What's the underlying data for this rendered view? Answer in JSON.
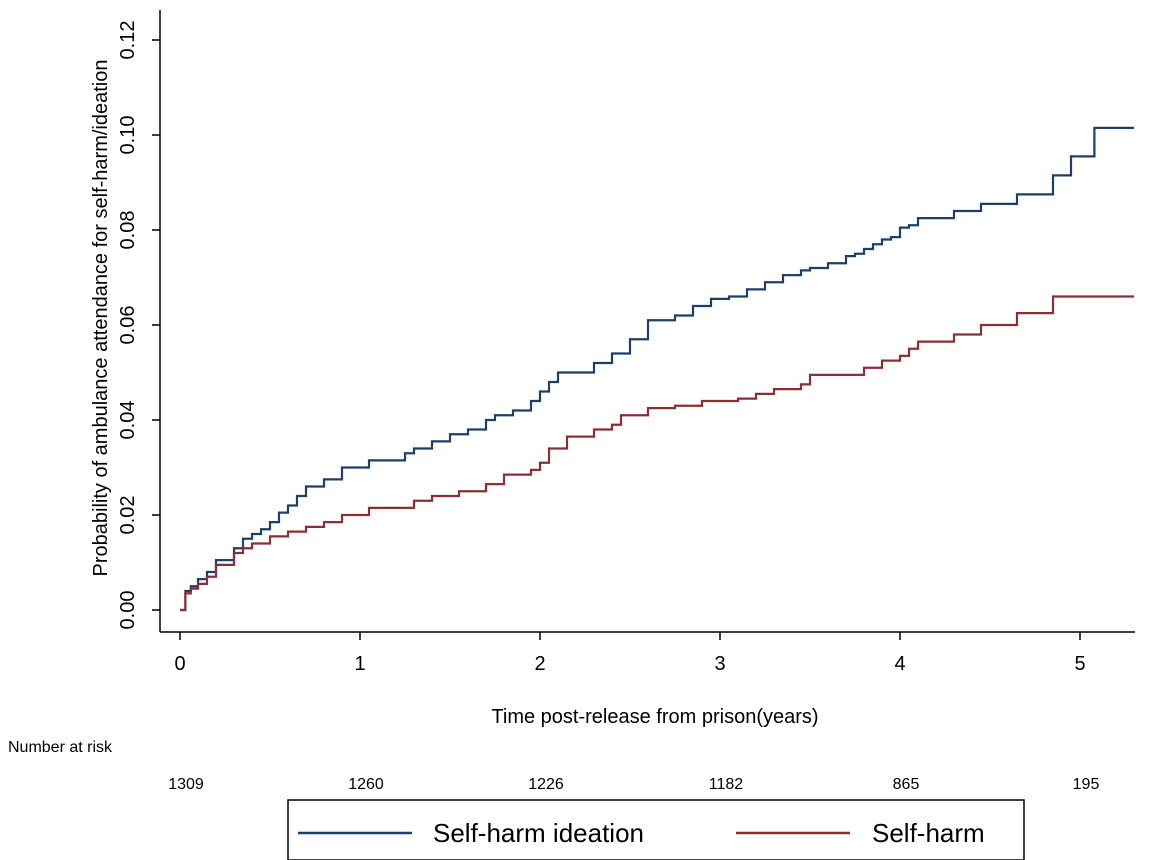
{
  "chart_data": {
    "type": "line",
    "title": "",
    "xlabel": "Time post-release from prison(years)",
    "ylabel": "Probability of ambulance attendance for self-harm/ideation",
    "xlim": [
      -0.1,
      5.3
    ],
    "ylim": [
      -0.004,
      0.124
    ],
    "xticks": [
      0,
      1,
      2,
      3,
      4,
      5
    ],
    "yticks": [
      0.0,
      0.02,
      0.04,
      0.06,
      0.08,
      0.1,
      0.12
    ],
    "xtick_labels": [
      "0",
      "1",
      "2",
      "3",
      "4",
      "5"
    ],
    "ytick_labels": [
      "0.00",
      "0.02",
      "0.04",
      "0.06",
      "0.08",
      "0.10",
      "0.12"
    ],
    "grid": false,
    "legend_position": "bottom",
    "series": [
      {
        "name": "Self-harm ideation",
        "color": "#1f3f66",
        "step": true,
        "x": [
          0,
          0.03,
          0.06,
          0.1,
          0.15,
          0.2,
          0.3,
          0.35,
          0.4,
          0.45,
          0.5,
          0.55,
          0.6,
          0.65,
          0.7,
          0.8,
          0.9,
          1.05,
          1.25,
          1.3,
          1.4,
          1.5,
          1.6,
          1.7,
          1.75,
          1.85,
          1.95,
          2.0,
          2.05,
          2.1,
          2.3,
          2.4,
          2.5,
          2.6,
          2.75,
          2.85,
          2.95,
          3.05,
          3.15,
          3.25,
          3.35,
          3.45,
          3.5,
          3.6,
          3.7,
          3.75,
          3.8,
          3.85,
          3.9,
          3.95,
          4.0,
          4.05,
          4.1,
          4.3,
          4.45,
          4.65,
          4.85,
          4.95,
          5.08,
          5.3
        ],
        "values": [
          0.0,
          0.004,
          0.005,
          0.0065,
          0.008,
          0.0105,
          0.013,
          0.015,
          0.016,
          0.017,
          0.0185,
          0.0205,
          0.022,
          0.024,
          0.026,
          0.0275,
          0.03,
          0.0315,
          0.033,
          0.034,
          0.0355,
          0.037,
          0.038,
          0.04,
          0.041,
          0.042,
          0.044,
          0.046,
          0.048,
          0.05,
          0.052,
          0.054,
          0.057,
          0.061,
          0.062,
          0.064,
          0.0655,
          0.066,
          0.0675,
          0.069,
          0.0705,
          0.0715,
          0.072,
          0.073,
          0.0745,
          0.075,
          0.076,
          0.077,
          0.078,
          0.0785,
          0.0805,
          0.081,
          0.0825,
          0.084,
          0.0855,
          0.0875,
          0.0915,
          0.0955,
          0.1015,
          0.1015
        ]
      },
      {
        "name": "Self-harm",
        "color": "#8b2f35",
        "step": true,
        "x": [
          0,
          0.03,
          0.06,
          0.1,
          0.15,
          0.2,
          0.3,
          0.35,
          0.4,
          0.5,
          0.6,
          0.7,
          0.8,
          0.9,
          1.05,
          1.3,
          1.4,
          1.55,
          1.7,
          1.8,
          1.95,
          2.0,
          2.05,
          2.15,
          2.3,
          2.4,
          2.45,
          2.6,
          2.75,
          2.9,
          3.1,
          3.2,
          3.3,
          3.45,
          3.5,
          3.8,
          3.9,
          4.0,
          4.05,
          4.1,
          4.3,
          4.45,
          4.65,
          4.85,
          5.3
        ],
        "values": [
          0.0,
          0.0035,
          0.0045,
          0.0055,
          0.007,
          0.0095,
          0.012,
          0.013,
          0.014,
          0.0155,
          0.0165,
          0.0175,
          0.0185,
          0.02,
          0.0215,
          0.023,
          0.024,
          0.025,
          0.0265,
          0.0285,
          0.0295,
          0.031,
          0.034,
          0.0365,
          0.038,
          0.039,
          0.041,
          0.0425,
          0.043,
          0.044,
          0.0445,
          0.0455,
          0.0465,
          0.0475,
          0.0495,
          0.051,
          0.0525,
          0.0535,
          0.055,
          0.0565,
          0.058,
          0.06,
          0.0625,
          0.066,
          0.066
        ]
      }
    ],
    "risk_table": {
      "label": "Number at risk",
      "x": [
        0,
        1,
        2,
        3,
        4,
        5
      ],
      "counts": [
        "1309",
        "1260",
        "1226",
        "1182",
        "865",
        "195"
      ]
    }
  }
}
